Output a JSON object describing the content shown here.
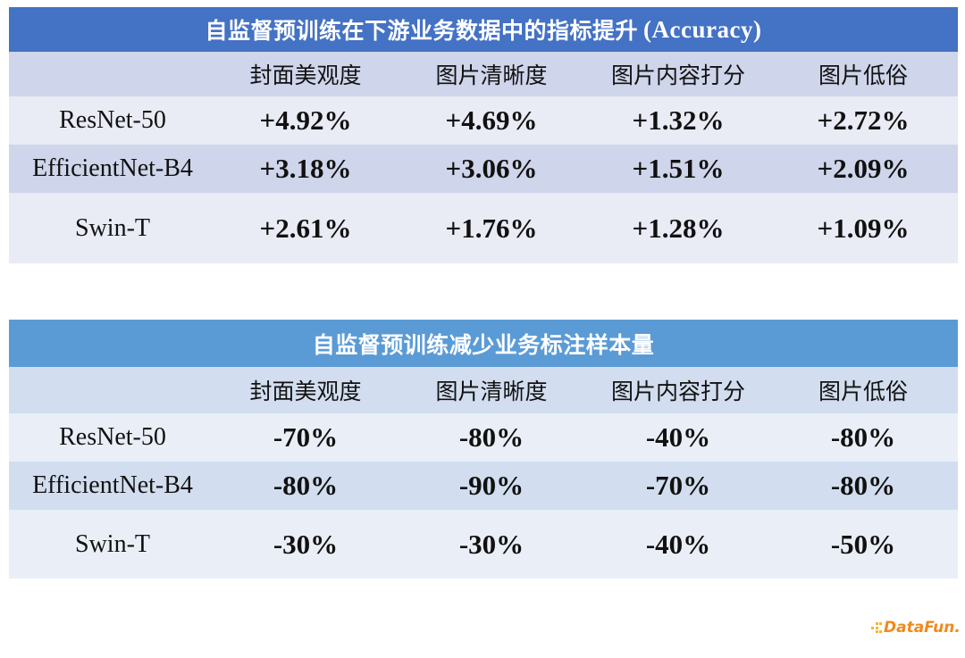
{
  "tables": [
    {
      "title_cn": "自监督预训练在下游业务数据中的指标提升",
      "title_en": "(Accuracy)",
      "headers": [
        "",
        "封面美观度",
        "图片清晰度",
        "图片内容打分",
        "图片低俗"
      ],
      "rows": [
        {
          "model": "ResNet-50",
          "values": [
            "+4.92%",
            "+4.69%",
            "+1.32%",
            "+2.72%"
          ]
        },
        {
          "model": "EfficientNet-B4",
          "values": [
            "+3.18%",
            "+3.06%",
            "+1.51%",
            "+2.09%"
          ]
        },
        {
          "model": "Swin-T",
          "values": [
            "+2.61%",
            "+1.76%",
            "+1.28%",
            "+1.09%"
          ]
        }
      ],
      "colors": {
        "title_bg": "#4472C4",
        "band_dark": "#CFD5EA",
        "band_light": "#E9EBF5"
      }
    },
    {
      "title_cn": "自监督预训练减少业务标注样本量",
      "title_en": "",
      "headers": [
        "",
        "封面美观度",
        "图片清晰度",
        "图片内容打分",
        "图片低俗"
      ],
      "rows": [
        {
          "model": "ResNet-50",
          "values": [
            "-70%",
            "-80%",
            "-40%",
            "-80%"
          ]
        },
        {
          "model": "EfficientNet-B4",
          "values": [
            "-80%",
            "-90%",
            "-70%",
            "-80%"
          ]
        },
        {
          "model": "Swin-T",
          "values": [
            "-30%",
            "-30%",
            "-40%",
            "-50%"
          ]
        }
      ],
      "colors": {
        "title_bg": "#5B9BD5",
        "band_dark": "#D2DEEF",
        "band_light": "#EAEFF7"
      }
    }
  ],
  "logo": {
    "text": "DataFun.",
    "icon": "datafun-dots-icon",
    "color": "#F08A1C"
  }
}
